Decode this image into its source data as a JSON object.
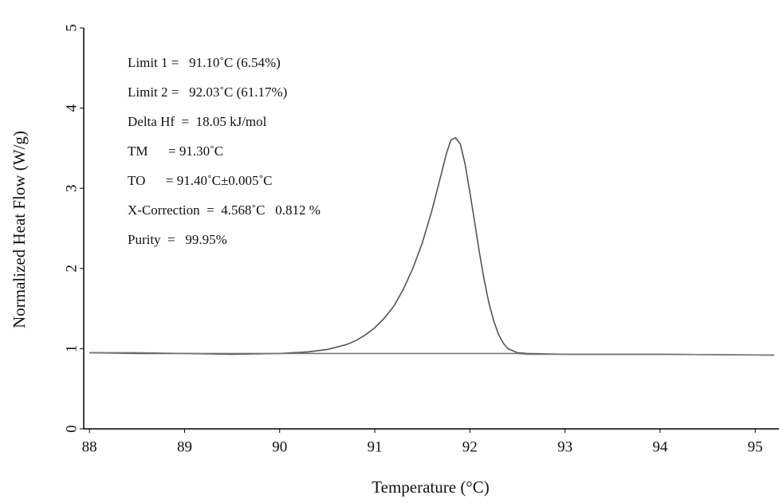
{
  "chart_data": {
    "type": "line",
    "x_label": "Temperature (°C)",
    "y_label": "Normalized Heat Flow (W/g)",
    "annotations": [
      "Limit 1 =   91.10˚C (6.54%)",
      "Limit 2 =   92.03˚C (61.17%)",
      "Delta Hf  =  18.05 kJ/mol",
      "TM      = 91.30˚C",
      "TO      = 91.40˚C±0.005˚C",
      "X-Correction  =  4.568˚C   0.812 %",
      "Purity  =   99.95%"
    ],
    "x": [
      88,
      88.5,
      89,
      89.5,
      90,
      90.3,
      90.5,
      90.7,
      90.8,
      90.9,
      91,
      91.1,
      91.2,
      91.3,
      91.4,
      91.5,
      91.6,
      91.7,
      91.75,
      91.8,
      91.85,
      91.9,
      91.95,
      92,
      92.05,
      92.1,
      92.15,
      92.2,
      92.25,
      92.3,
      92.35,
      92.4,
      92.5,
      92.6,
      93,
      94,
      95.2
    ],
    "series": [
      {
        "color": "#555555",
        "values": [
          0.95,
          0.94,
          0.94,
          0.93,
          0.94,
          0.96,
          0.99,
          1.05,
          1.1,
          1.17,
          1.26,
          1.38,
          1.53,
          1.74,
          2.0,
          2.32,
          2.72,
          3.18,
          3.42,
          3.6,
          3.63,
          3.55,
          3.3,
          2.95,
          2.58,
          2.2,
          1.86,
          1.57,
          1.35,
          1.18,
          1.07,
          1.0,
          0.95,
          0.94,
          0.93,
          0.93,
          0.92
        ]
      },
      {
        "color": "#777777",
        "values": [
          0.95,
          0.95,
          0.94,
          0.94,
          0.94,
          0.94,
          0.94,
          0.94,
          0.94,
          0.94,
          0.94,
          0.94,
          0.94,
          0.94,
          0.94,
          0.94,
          0.94,
          0.94,
          0.94,
          0.94,
          0.94,
          0.94,
          0.94,
          0.94,
          0.94,
          0.94,
          0.94,
          0.94,
          0.94,
          0.94,
          0.94,
          0.94,
          0.94,
          0.93,
          0.93,
          0.93,
          0.92
        ]
      }
    ],
    "xlim": [
      87.94,
      95.25
    ],
    "xticks": [
      88,
      89,
      90,
      91,
      92,
      93,
      94,
      95
    ],
    "ylim": [
      0,
      5
    ],
    "yticks": [
      0,
      1,
      2,
      3,
      4,
      5
    ],
    "grid": false
  }
}
